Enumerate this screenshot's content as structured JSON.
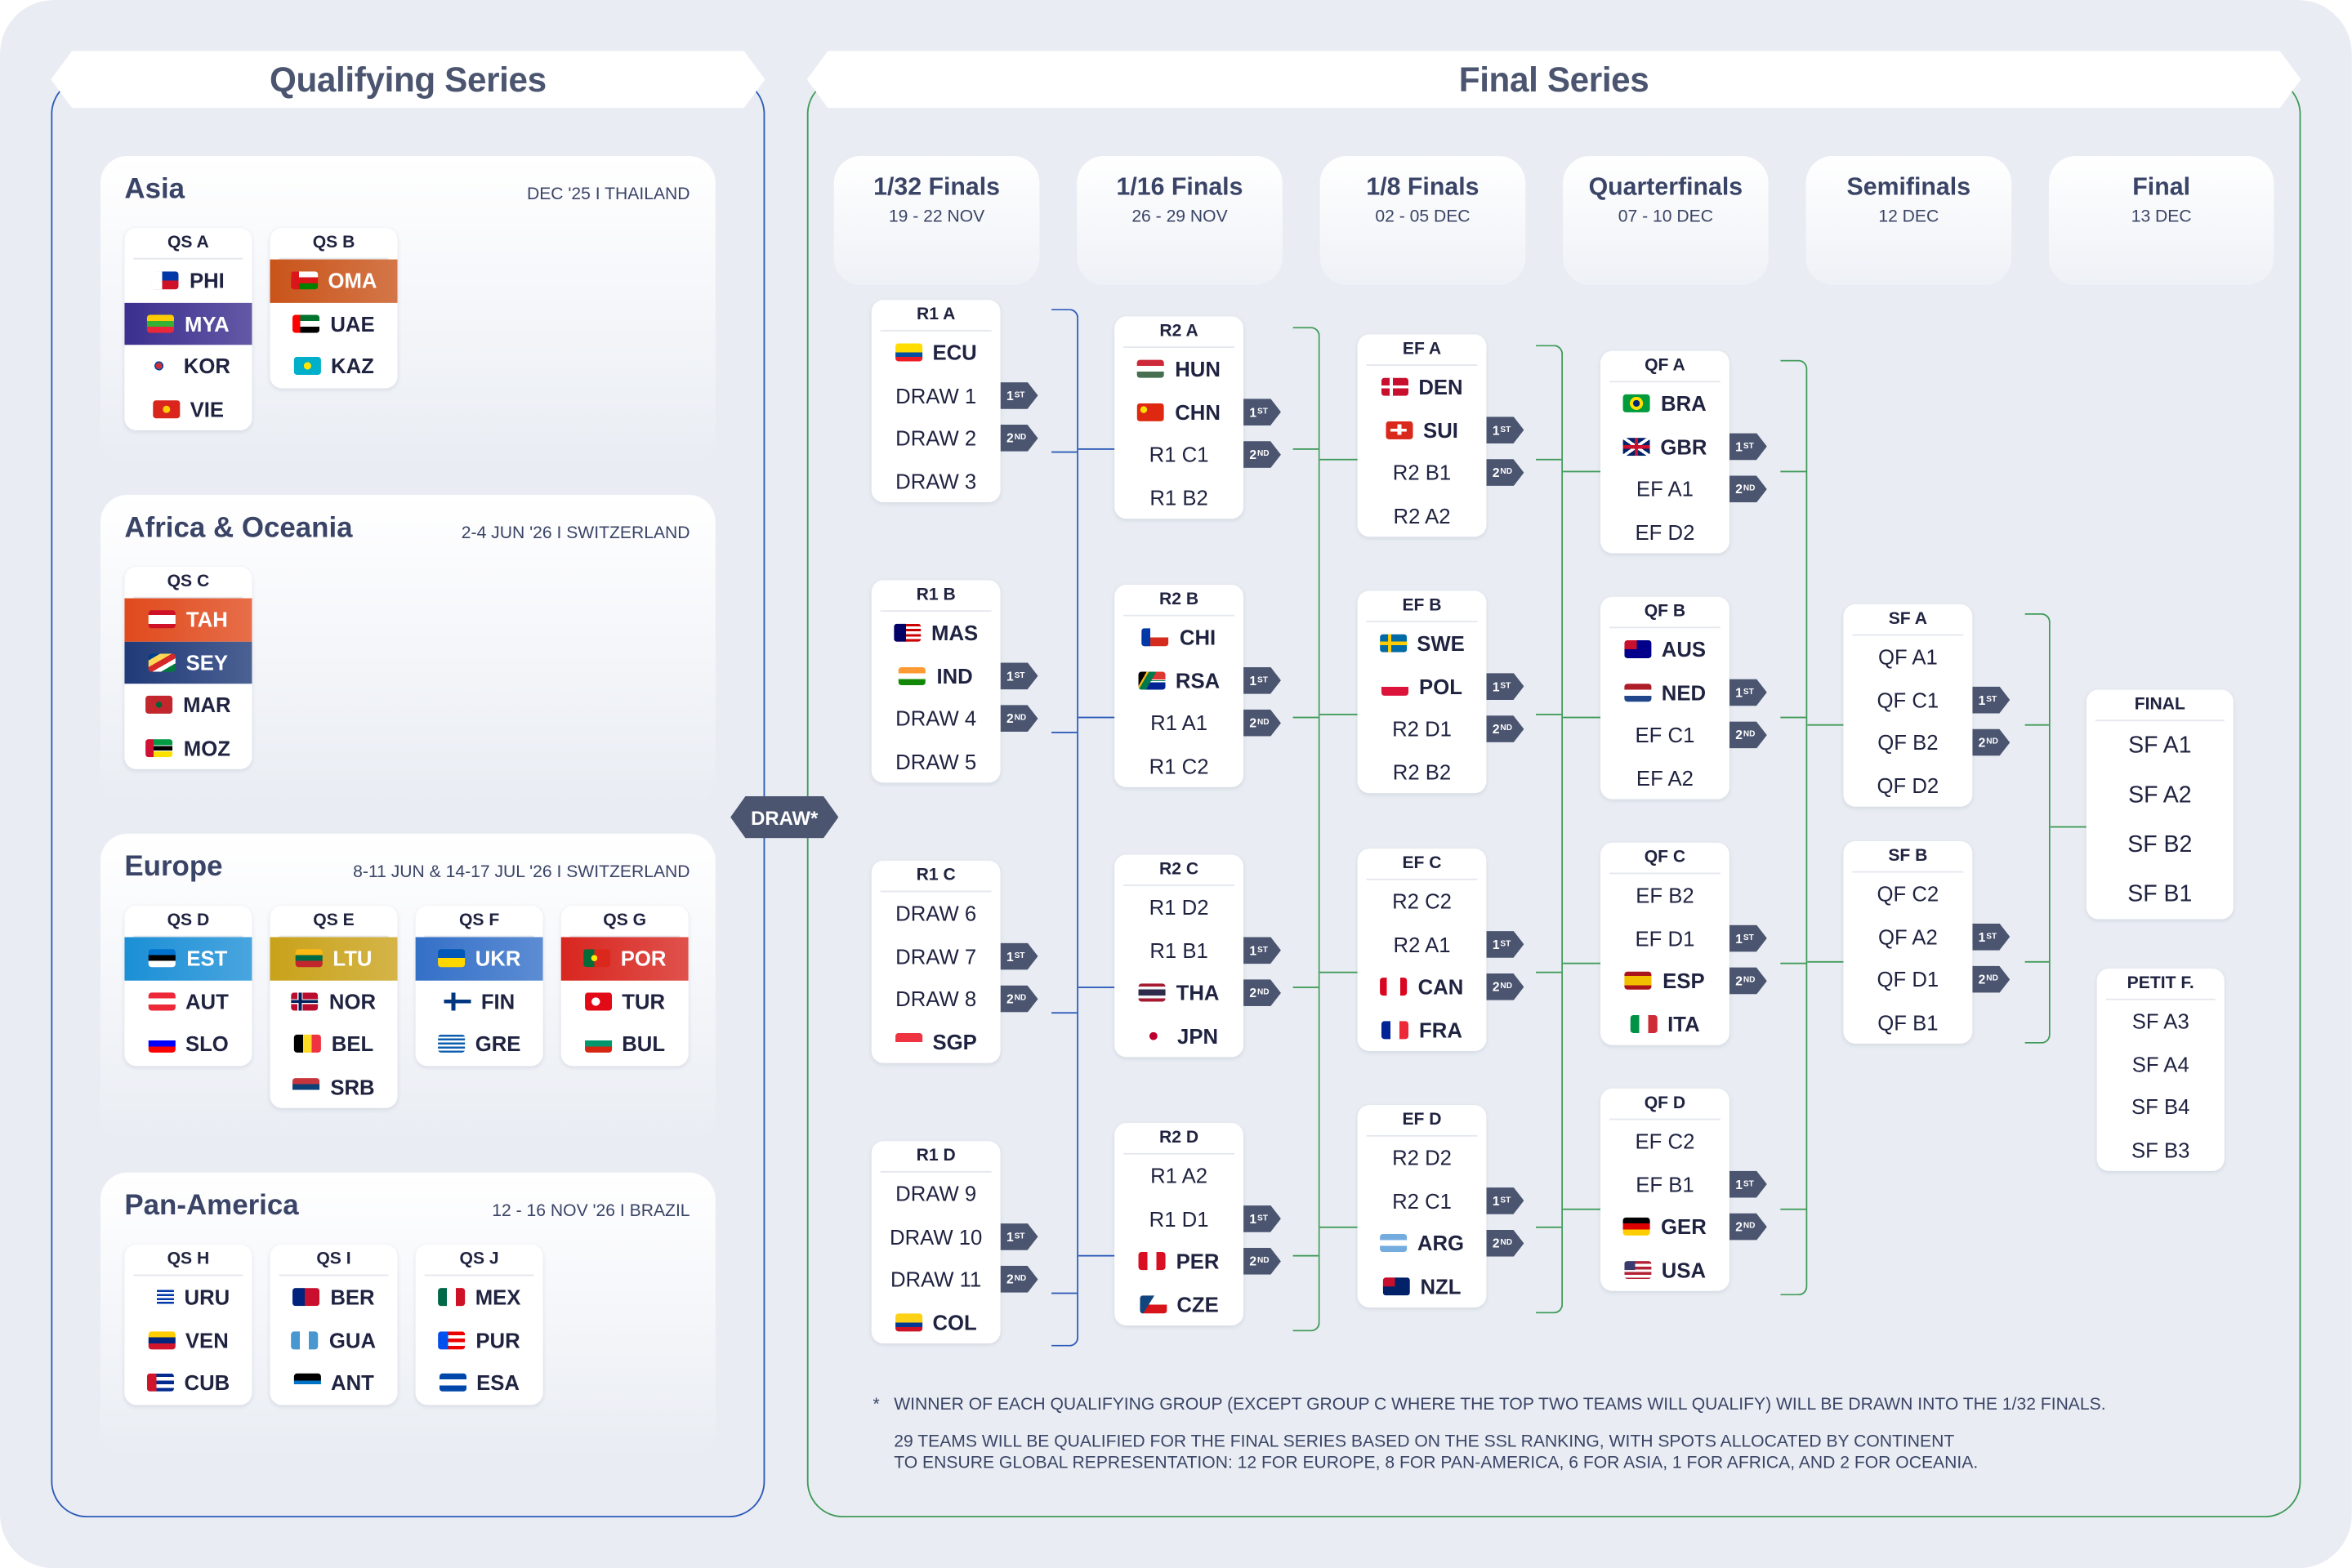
{
  "qualifying": {
    "title": "Qualifying Series",
    "regions": [
      {
        "name": "Asia",
        "date": "DEC '25 I THAILAND",
        "groups": [
          {
            "title": "QS A",
            "teams": [
              {
                "code": "PHI",
                "flag": "ph"
              },
              {
                "code": "MYA",
                "flag": "mm",
                "hl": "#3b2f8f"
              },
              {
                "code": "KOR",
                "flag": "kr"
              },
              {
                "code": "VIE",
                "flag": "vn"
              }
            ]
          },
          {
            "title": "QS B",
            "teams": [
              {
                "code": "OMA",
                "flag": "om",
                "hl": "#c9541a"
              },
              {
                "code": "UAE",
                "flag": "ae"
              },
              {
                "code": "KAZ",
                "flag": "kz"
              }
            ]
          }
        ]
      },
      {
        "name": "Africa & Oceania",
        "date": "2-4 JUN '26 I SWITZERLAND",
        "groups": [
          {
            "title": "QS C",
            "teams": [
              {
                "code": "TAH",
                "flag": "pf",
                "hl": "#e04a1c"
              },
              {
                "code": "SEY",
                "flag": "sc",
                "hl": "#1f3a78"
              },
              {
                "code": "MAR",
                "flag": "ma"
              },
              {
                "code": "MOZ",
                "flag": "mz"
              }
            ]
          }
        ]
      },
      {
        "name": "Europe",
        "date": "8-11 JUN & 14-17 JUL '26 I SWITZERLAND",
        "groups": [
          {
            "title": "QS D",
            "teams": [
              {
                "code": "EST",
                "flag": "ee",
                "hl": "#1b8fd6"
              },
              {
                "code": "AUT",
                "flag": "at"
              },
              {
                "code": "SLO",
                "flag": "si"
              }
            ]
          },
          {
            "title": "QS E",
            "teams": [
              {
                "code": "LTU",
                "flag": "lt",
                "hl": "#c9a21a"
              },
              {
                "code": "NOR",
                "flag": "no"
              },
              {
                "code": "BEL",
                "flag": "be"
              },
              {
                "code": "SRB",
                "flag": "rs"
              }
            ]
          },
          {
            "title": "QS F",
            "teams": [
              {
                "code": "UKR",
                "flag": "ua",
                "hl": "#3470c8"
              },
              {
                "code": "FIN",
                "flag": "fi"
              },
              {
                "code": "GRE",
                "flag": "gr"
              }
            ]
          },
          {
            "title": "QS G",
            "teams": [
              {
                "code": "POR",
                "flag": "pt",
                "hl": "#d8261f"
              },
              {
                "code": "TUR",
                "flag": "tr"
              },
              {
                "code": "BUL",
                "flag": "bg"
              }
            ]
          }
        ]
      },
      {
        "name": "Pan-America",
        "date": "12 - 16 NOV '26 I BRAZIL",
        "groups": [
          {
            "title": "QS H",
            "teams": [
              {
                "code": "URU",
                "flag": "uy"
              },
              {
                "code": "VEN",
                "flag": "ve"
              },
              {
                "code": "CUB",
                "flag": "cu"
              }
            ]
          },
          {
            "title": "QS I",
            "teams": [
              {
                "code": "BER",
                "flag": "bm"
              },
              {
                "code": "GUA",
                "flag": "gt"
              },
              {
                "code": "ANT",
                "flag": "ag"
              }
            ]
          },
          {
            "title": "QS J",
            "teams": [
              {
                "code": "MEX",
                "flag": "mx"
              },
              {
                "code": "PUR",
                "flag": "pr"
              },
              {
                "code": "ESA",
                "flag": "sv"
              }
            ]
          }
        ]
      }
    ]
  },
  "final": {
    "title": "Final Series",
    "draw_label": "DRAW*",
    "columns": [
      {
        "title": "1/32 Finals",
        "date": "19 - 22 NOV"
      },
      {
        "title": "1/16 Finals",
        "date": "26 - 29 NOV"
      },
      {
        "title": "1/8 Finals",
        "date": "02 - 05 DEC"
      },
      {
        "title": "Quarterfinals",
        "date": "07 - 10 DEC"
      },
      {
        "title": "Semifinals",
        "date": "12 DEC"
      },
      {
        "title": "Final",
        "date": "13 DEC"
      }
    ],
    "rounds": [
      [
        {
          "title": "R1 A",
          "slots": [
            {
              "t": "ECU",
              "flag": "ec"
            },
            {
              "t": "DRAW 1"
            },
            {
              "t": "DRAW 2"
            },
            {
              "t": "DRAW 3"
            }
          ]
        },
        {
          "title": "R1 B",
          "slots": [
            {
              "t": "MAS",
              "flag": "my"
            },
            {
              "t": "IND",
              "flag": "in"
            },
            {
              "t": "DRAW 4"
            },
            {
              "t": "DRAW 5"
            }
          ]
        },
        {
          "title": "R1 C",
          "slots": [
            {
              "t": "DRAW 6"
            },
            {
              "t": "DRAW 7"
            },
            {
              "t": "DRAW 8"
            },
            {
              "t": "SGP",
              "flag": "sg"
            }
          ]
        },
        {
          "title": "R1 D",
          "slots": [
            {
              "t": "DRAW 9"
            },
            {
              "t": "DRAW 10"
            },
            {
              "t": "DRAW 11"
            },
            {
              "t": "COL",
              "flag": "co"
            }
          ]
        }
      ],
      [
        {
          "title": "R2 A",
          "slots": [
            {
              "t": "HUN",
              "flag": "hu"
            },
            {
              "t": "CHN",
              "flag": "cn"
            },
            {
              "t": "R1 C1"
            },
            {
              "t": "R1 B2"
            }
          ]
        },
        {
          "title": "R2 B",
          "slots": [
            {
              "t": "CHI",
              "flag": "cl"
            },
            {
              "t": "RSA",
              "flag": "za"
            },
            {
              "t": "R1 A1"
            },
            {
              "t": "R1 C2"
            }
          ]
        },
        {
          "title": "R2 C",
          "slots": [
            {
              "t": "R1 D2"
            },
            {
              "t": "R1 B1"
            },
            {
              "t": "THA",
              "flag": "th"
            },
            {
              "t": "JPN",
              "flag": "jp"
            }
          ]
        },
        {
          "title": "R2 D",
          "slots": [
            {
              "t": "R1 A2"
            },
            {
              "t": "R1 D1"
            },
            {
              "t": "PER",
              "flag": "pe"
            },
            {
              "t": "CZE",
              "flag": "cz"
            }
          ]
        }
      ],
      [
        {
          "title": "EF A",
          "slots": [
            {
              "t": "DEN",
              "flag": "dk"
            },
            {
              "t": "SUI",
              "flag": "ch"
            },
            {
              "t": "R2 B1"
            },
            {
              "t": "R2 A2"
            }
          ]
        },
        {
          "title": "EF B",
          "slots": [
            {
              "t": "SWE",
              "flag": "se"
            },
            {
              "t": "POL",
              "flag": "pl"
            },
            {
              "t": "R2 D1"
            },
            {
              "t": "R2 B2"
            }
          ]
        },
        {
          "title": "EF C",
          "slots": [
            {
              "t": "R2 C2"
            },
            {
              "t": "R2 A1"
            },
            {
              "t": "CAN",
              "flag": "ca"
            },
            {
              "t": "FRA",
              "flag": "fr"
            }
          ]
        },
        {
          "title": "EF D",
          "slots": [
            {
              "t": "R2 D2"
            },
            {
              "t": "R2 C1"
            },
            {
              "t": "ARG",
              "flag": "ar"
            },
            {
              "t": "NZL",
              "flag": "nz"
            }
          ]
        }
      ],
      [
        {
          "title": "QF A",
          "slots": [
            {
              "t": "BRA",
              "flag": "br"
            },
            {
              "t": "GBR",
              "flag": "gb"
            },
            {
              "t": "EF A1"
            },
            {
              "t": "EF D2"
            }
          ]
        },
        {
          "title": "QF B",
          "slots": [
            {
              "t": "AUS",
              "flag": "au"
            },
            {
              "t": "NED",
              "flag": "nl"
            },
            {
              "t": "EF C1"
            },
            {
              "t": "EF A2"
            }
          ]
        },
        {
          "title": "QF C",
          "slots": [
            {
              "t": "EF B2"
            },
            {
              "t": "EF D1"
            },
            {
              "t": "ESP",
              "flag": "es"
            },
            {
              "t": "ITA",
              "flag": "it"
            }
          ]
        },
        {
          "title": "QF D",
          "slots": [
            {
              "t": "EF C2"
            },
            {
              "t": "EF B1"
            },
            {
              "t": "GER",
              "flag": "de"
            },
            {
              "t": "USA",
              "flag": "us"
            }
          ]
        }
      ],
      [
        {
          "title": "SF A",
          "slots": [
            {
              "t": "QF A1"
            },
            {
              "t": "QF C1"
            },
            {
              "t": "QF B2"
            },
            {
              "t": "QF D2"
            }
          ]
        },
        {
          "title": "SF B",
          "slots": [
            {
              "t": "QF C2"
            },
            {
              "t": "QF A2"
            },
            {
              "t": "QF D1"
            },
            {
              "t": "QF B1"
            }
          ]
        }
      ]
    ],
    "badges": {
      "first": "1",
      "first_sup": "ST",
      "second": "2",
      "second_sup": "ND"
    },
    "final_box": {
      "title": "FINAL",
      "slots": [
        "SF A1",
        "SF A2",
        "SF B2",
        "SF B1"
      ]
    },
    "petit_box": {
      "title": "PETIT F.",
      "slots": [
        "SF A3",
        "SF A4",
        "SF B4",
        "SF B3"
      ]
    },
    "notes": {
      "asterisk": "*",
      "line1": "WINNER OF EACH QUALIFYING GROUP (EXCEPT GROUP C WHERE THE TOP TWO TEAMS WILL QUALIFY) WILL BE DRAWN INTO THE 1/32 FINALS.",
      "line2": "29 TEAMS WILL BE QUALIFIED FOR THE FINAL SERIES BASED ON THE SSL RANKING, WITH SPOTS ALLOCATED BY CONTINENT",
      "line3": "TO ENSURE GLOBAL REPRESENTATION: 12 FOR EUROPE, 8 FOR PAN-AMERICA, 6 FOR ASIA, 1 FOR AFRICA, AND 2 FOR OCEANIA."
    }
  }
}
